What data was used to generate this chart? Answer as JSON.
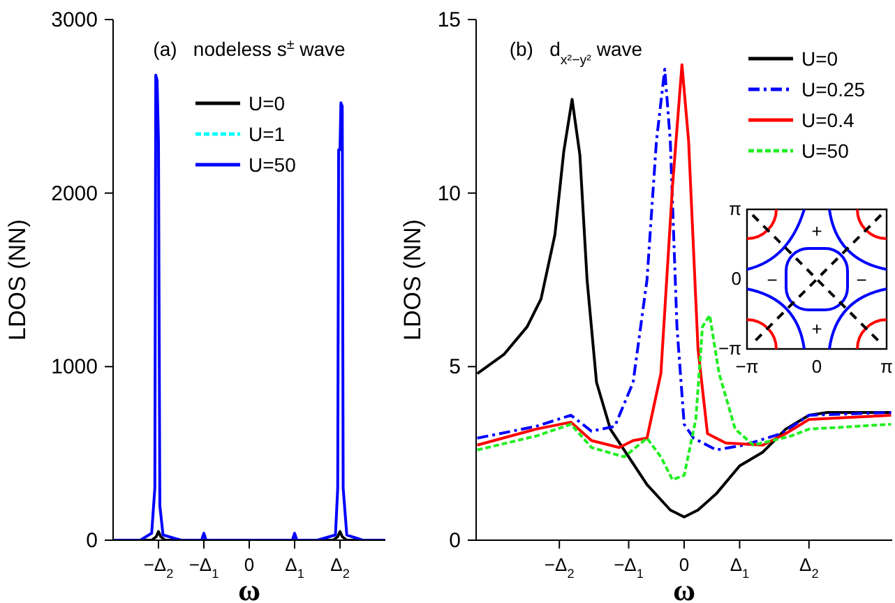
{
  "chart_data": [
    {
      "type": "line",
      "title": "(a)   nodeless s$^{±}$ wave",
      "xlabel": "ω",
      "ylabel": "LDOS (NN)",
      "xlim": [
        -3,
        3
      ],
      "xticks": [
        {
          "value": -2,
          "label": "−Δ$_{2}$"
        },
        {
          "value": -1,
          "label": "−Δ$_{1}$"
        },
        0,
        {
          "value": 1,
          "label": "Δ$_{1}$"
        },
        {
          "value": 2,
          "label": "Δ$_{2}$"
        }
      ],
      "ylim": [
        0,
        3000
      ],
      "yticks": [
        0,
        1000,
        2000,
        3000
      ],
      "legend": "top right",
      "series": [
        {
          "name": "U=0",
          "color": "#000000",
          "line_style": "solid",
          "x": [
            -3,
            -2.15,
            -2.05,
            -2,
            -1.95,
            -1.85,
            1.85,
            1.95,
            2,
            2.05,
            2.15,
            3
          ],
          "values": [
            0,
            0,
            20,
            50,
            20,
            0,
            0,
            20,
            50,
            20,
            0,
            0
          ]
        },
        {
          "name": "U=1",
          "color": "#00ffff",
          "line_style": "dashed"
        },
        {
          "name": "U=50",
          "color": "#0000ff",
          "line_style": "solid",
          "x": [
            -3,
            -2.4,
            -2.15,
            -2.08,
            -2.06,
            -2.03,
            -2,
            -1.97,
            -1.9,
            -1.5,
            -1.05,
            -1,
            -0.95,
            0,
            0.95,
            1,
            1.05,
            1.5,
            1.9,
            1.95,
            1.97,
            2,
            2.02,
            2.05,
            2.07,
            2.15,
            2.5,
            3
          ],
          "values": [
            0,
            0,
            40,
            300,
            2680,
            2650,
            2300,
            200,
            30,
            0,
            0,
            40,
            0,
            0,
            0,
            40,
            0,
            0,
            30,
            300,
            2250,
            2250,
            2520,
            2500,
            300,
            30,
            0,
            0
          ]
        }
      ]
    },
    {
      "type": "line",
      "title": "(b)   d$_{x²−y²}$ wave",
      "xlabel": "ω",
      "ylabel": "LDOS (NN)",
      "xlim": [
        -3.75,
        3.75
      ],
      "xticks": [
        {
          "value": -2.25,
          "label": "−Δ$_{2}$"
        },
        {
          "value": -1,
          "label": "−Δ$_{1}$"
        },
        0,
        {
          "value": 1,
          "label": "Δ$_{1}$"
        },
        {
          "value": 2.25,
          "label": "Δ$_{2}$"
        }
      ],
      "ylim": [
        0,
        15
      ],
      "yticks": [
        0,
        5,
        10,
        15
      ],
      "legend": "top right",
      "annotations": [
        "π",
        "0",
        "−π",
        "−π",
        "0",
        "π",
        "+",
        "+",
        "−",
        "−"
      ],
      "series": [
        {
          "name": "U=0",
          "color": "#000000",
          "line_style": "solid",
          "x": [
            -3.73,
            -3.25,
            -2.83,
            -2.58,
            -2.33,
            -2.17,
            -2.02,
            -1.88,
            -1.75,
            -1.58,
            -1.33,
            -1,
            -0.67,
            -0.25,
            0,
            0.25,
            0.58,
            1,
            1.42,
            1.83,
            2.25,
            2.58,
            3.73
          ],
          "values": [
            4.8,
            5.35,
            6.15,
            6.95,
            8.8,
            11.2,
            12.7,
            11.1,
            7.5,
            4.55,
            3.2,
            2.4,
            1.6,
            0.87,
            0.67,
            0.87,
            1.34,
            2.14,
            2.54,
            3.2,
            3.6,
            3.68,
            3.68
          ]
        },
        {
          "name": "U=0.25",
          "color": "#0000ff",
          "line_style": "dashdot",
          "x": [
            -3.73,
            -2.67,
            -2.04,
            -1.67,
            -1.25,
            -0.92,
            -0.67,
            -0.5,
            -0.35,
            -0.25,
            -0.13,
            0,
            0.17,
            0.58,
            1.08,
            1.75,
            2.25,
            3.73
          ],
          "values": [
            2.94,
            3.28,
            3.6,
            3.14,
            3.28,
            4.55,
            7.5,
            11.5,
            13.57,
            11.5,
            6.15,
            3.34,
            2.94,
            2.6,
            2.74,
            3.07,
            3.6,
            3.68
          ]
        },
        {
          "name": "U=0.4",
          "color": "#ff0000",
          "line_style": "solid",
          "x": [
            -3.73,
            -2.67,
            -2.04,
            -1.67,
            -1.17,
            -0.92,
            -0.67,
            -0.42,
            -0.21,
            -0.04,
            0.08,
            0.25,
            0.42,
            0.75,
            1.42,
            1.83,
            2.25,
            3.73
          ],
          "values": [
            2.74,
            3.2,
            3.4,
            2.87,
            2.67,
            2.87,
            2.94,
            4.8,
            10.2,
            13.7,
            11.5,
            5.5,
            3.07,
            2.8,
            2.74,
            3.07,
            3.48,
            3.6
          ]
        },
        {
          "name": "U=50",
          "color": "#22ee22",
          "line_style": "dashed",
          "x": [
            -3.73,
            -2.67,
            -2.04,
            -1.67,
            -1.08,
            -0.67,
            -0.42,
            -0.21,
            0,
            0.21,
            0.33,
            0.46,
            0.63,
            0.92,
            1.25,
            1.92,
            2.25,
            3.73
          ],
          "values": [
            2.6,
            3,
            3.34,
            2.67,
            2.4,
            2.94,
            2.4,
            1.74,
            1.87,
            3.48,
            6.15,
            6.48,
            4.8,
            3.2,
            2.74,
            3,
            3.2,
            3.34
          ]
        }
      ]
    }
  ]
}
